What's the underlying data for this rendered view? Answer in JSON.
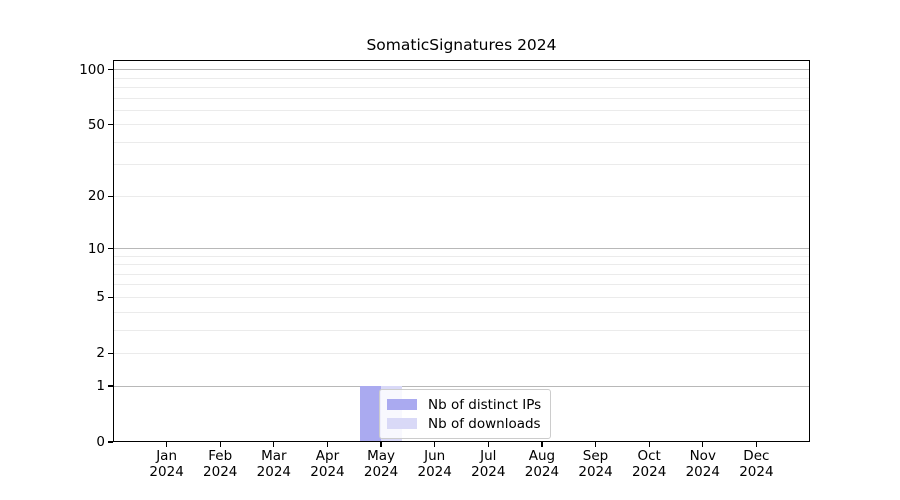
{
  "chart_data": {
    "type": "bar",
    "title": "SomaticSignatures 2024",
    "xlabel": "",
    "ylabel": "",
    "categories": [
      "Jan",
      "Feb",
      "Mar",
      "Apr",
      "May",
      "Jun",
      "Jul",
      "Aug",
      "Sep",
      "Oct",
      "Nov",
      "Dec"
    ],
    "xtick_year": "2024",
    "series": [
      {
        "name": "Nb of distinct IPs",
        "color": "#aaaaf0",
        "values": [
          0,
          0,
          0,
          0,
          1,
          0,
          0,
          0,
          0,
          0,
          0,
          0
        ]
      },
      {
        "name": "Nb of downloads",
        "color": "#d9d9f7",
        "values": [
          0,
          0,
          0,
          0,
          1,
          0,
          0,
          0,
          0,
          0,
          0,
          0
        ]
      }
    ],
    "yscale": "log1p",
    "ylim_transformed_max": 4.734,
    "yticks": [
      0,
      1,
      2,
      5,
      10,
      20,
      50,
      100
    ],
    "major_gridlines": [
      1,
      10,
      100
    ],
    "minor_gridlines": [
      2,
      3,
      4,
      5,
      6,
      7,
      8,
      9,
      20,
      30,
      40,
      50,
      60,
      70,
      80,
      90
    ],
    "grid": true,
    "legend": {
      "position": "lower-center",
      "frame_alpha": 0.8
    },
    "colors": {
      "major_grid": "#b8b8b8",
      "minor_grid": "#ebebeb",
      "axis": "#000000",
      "background": "#ffffff"
    }
  }
}
